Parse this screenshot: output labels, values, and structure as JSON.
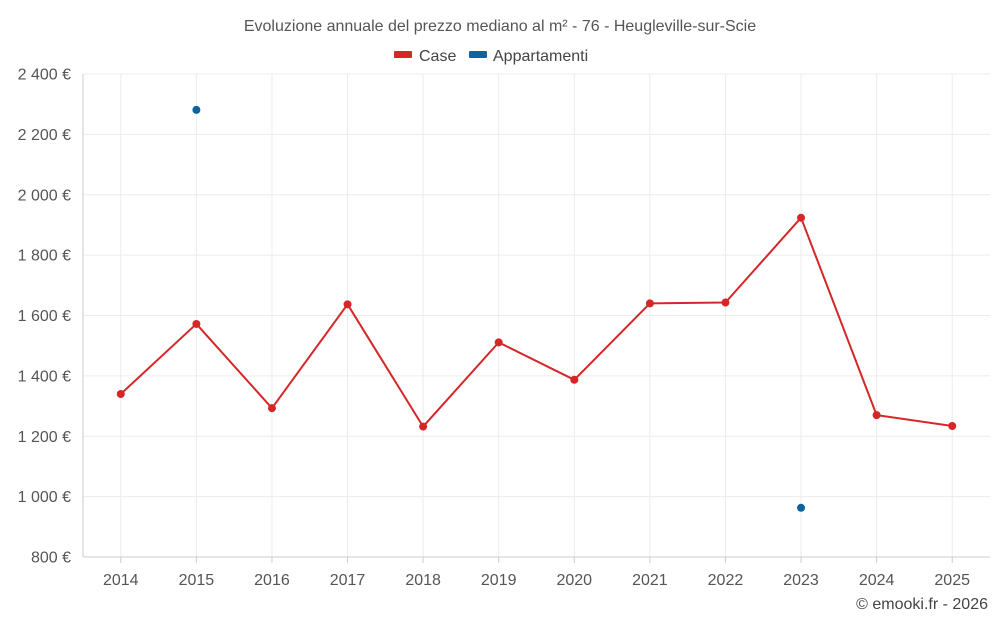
{
  "chart_data": {
    "type": "line",
    "title": "Evoluzione annuale del prezzo mediano al m² - 76 - Heugleville-sur-Scie",
    "categories": [
      "2014",
      "2015",
      "2016",
      "2017",
      "2018",
      "2019",
      "2020",
      "2021",
      "2022",
      "2023",
      "2024",
      "2025"
    ],
    "series": [
      {
        "name": "Case",
        "color": "#d62728",
        "values": [
          1340,
          1572,
          1293,
          1637,
          1232,
          1511,
          1387,
          1640,
          1643,
          1924,
          1270,
          1234
        ]
      },
      {
        "name": "Appartamenti",
        "color": "#0a64a0",
        "values": [
          null,
          2281,
          null,
          null,
          null,
          null,
          null,
          null,
          null,
          963,
          null,
          null
        ]
      }
    ],
    "ylim": [
      800,
      2400
    ],
    "yticks": [
      800,
      1000,
      1200,
      1400,
      1600,
      1800,
      2000,
      2200,
      2400
    ],
    "ytick_labels": [
      "800 €",
      "1 000 €",
      "1 200 €",
      "1 400 €",
      "1 600 €",
      "1 800 €",
      "2 000 €",
      "2 200 €",
      "2 400 €"
    ],
    "grid": true,
    "legend_position": "top-center"
  },
  "credit": "© emooki.fr - 2026"
}
